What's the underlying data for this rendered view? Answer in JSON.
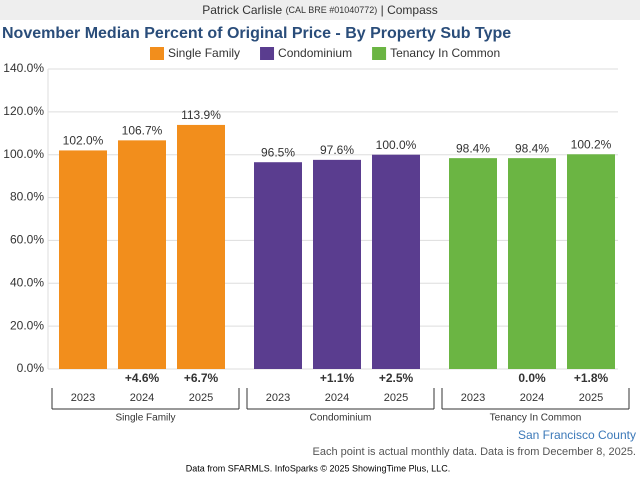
{
  "header": {
    "name": "Patrick Carlisle",
    "license": "(CAL BRE #01040772)",
    "company": "| Compass"
  },
  "chart_data": {
    "type": "grouped-bar",
    "title": "November Median Percent of Original Price - By Property Sub Type",
    "ylim": [
      0,
      140
    ],
    "yticks": [
      {
        "value": 0,
        "label": "0.0%"
      },
      {
        "value": 20,
        "label": "20.0%"
      },
      {
        "value": 40,
        "label": "40.0%"
      },
      {
        "value": 60,
        "label": "60.0%"
      },
      {
        "value": 80,
        "label": "80.0%"
      },
      {
        "value": 100,
        "label": "100.0%"
      },
      {
        "value": 120,
        "label": "120.0%"
      },
      {
        "value": 140,
        "label": "140.0%"
      }
    ],
    "grid": true,
    "groups": [
      {
        "name": "Single Family",
        "color": "#f28e1c",
        "categories": [
          "2023",
          "2024",
          "2025"
        ],
        "values": [
          102.0,
          106.7,
          113.9
        ],
        "value_labels": [
          "102.0%",
          "106.7%",
          "113.9%"
        ],
        "change_labels": [
          null,
          "+4.6%",
          "+6.7%"
        ]
      },
      {
        "name": "Condominium",
        "color": "#5a3d8f",
        "categories": [
          "2023",
          "2024",
          "2025"
        ],
        "values": [
          96.5,
          97.6,
          100.0
        ],
        "value_labels": [
          "96.5%",
          "97.6%",
          "100.0%"
        ],
        "change_labels": [
          null,
          "+1.1%",
          "+2.5%"
        ]
      },
      {
        "name": "Tenancy In Common",
        "color": "#6bb543",
        "categories": [
          "2023",
          "2024",
          "2025"
        ],
        "values": [
          98.4,
          98.4,
          100.2
        ],
        "value_labels": [
          "98.4%",
          "98.4%",
          "100.2%"
        ],
        "change_labels": [
          null,
          "0.0%",
          "+1.8%"
        ]
      }
    ],
    "region": "San Francisco County",
    "note": "Each point is actual monthly data. Data is from December 8, 2025.",
    "source": "Data from SFARMLS. InfoSparks © 2025 ShowingTime Plus, LLC."
  }
}
